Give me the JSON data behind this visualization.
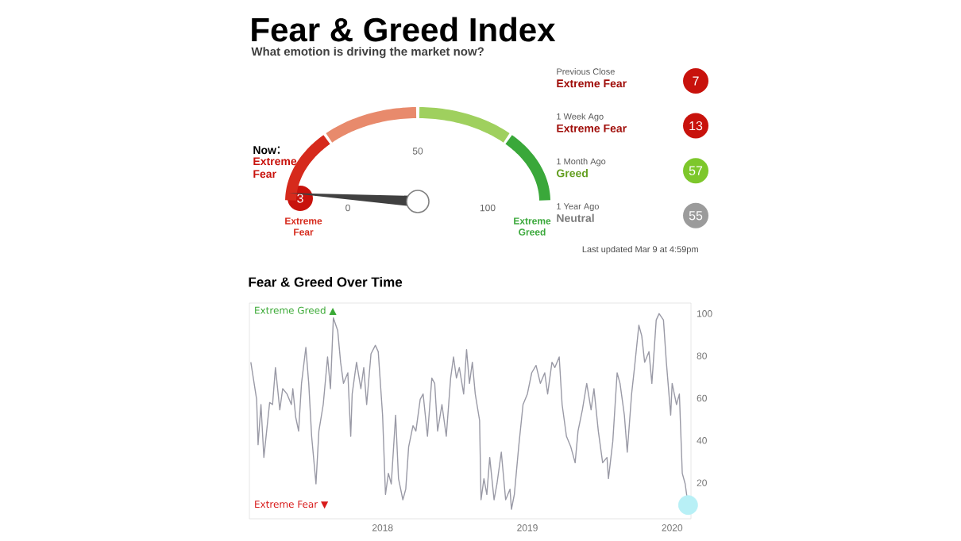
{
  "chart_data": [
    {
      "type": "other",
      "title": "Fear & Greed Index",
      "subtitle": "What emotion is driving the market now?",
      "categories": [
        "Now",
        "Previous Close",
        "1 Week Ago",
        "1 Month Ago",
        "1 Year Ago"
      ],
      "values": [
        3,
        7,
        13,
        57,
        55
      ],
      "colors": [
        "#c8120c",
        "#c8120c",
        "#c8120c",
        "#7dc72b",
        "#9b9b9b"
      ],
      "data_labels": true,
      "bands": [
        {
          "axis": "x",
          "label": "Extreme Fear",
          "color": "#d62a1c"
        },
        {
          "axis": "x",
          "label": null,
          "color": "#e88a6c"
        },
        {
          "axis": "x",
          "label": null,
          "color": "#9fd05e"
        },
        {
          "axis": "x",
          "label": "Extreme Greed",
          "color": "#3aa83a"
        }
      ],
      "annotations": [
        "Extreme Fear",
        "Extreme Fear",
        "Extreme Fear",
        "Greed",
        "Neutral",
        "0",
        "50",
        "100",
        "Last updated Mar 9 at 4:59pm"
      ]
    },
    {
      "type": "line",
      "title": "Fear & Greed Over Time",
      "xlim": [
        2017.08,
        2020.13
      ],
      "xticks": [
        2018,
        2019,
        2020
      ],
      "ylim": [
        3,
        105
      ],
      "yticks": [
        20,
        40,
        60,
        80,
        100
      ],
      "annotations": [
        "Extreme Greed ▲",
        "Extreme Fear ▼"
      ],
      "series": [
        {
          "type": "scatter",
          "color": "#b8f0f6",
          "x": [
            2020.11
          ],
          "values": [
            9.5
          ]
        },
        {
          "type": "line",
          "color": "#9a9aa6",
          "x": [
            2017.09,
            2017.13,
            2017.14,
            2017.16,
            2017.18,
            2017.22,
            2017.24,
            2017.26,
            2017.29,
            2017.31,
            2017.34,
            2017.37,
            2017.38,
            2017.4,
            2017.42,
            2017.44,
            2017.47,
            2017.49,
            2017.51,
            2017.54,
            2017.56,
            2017.59,
            2017.6,
            2017.62,
            2017.64,
            2017.66,
            2017.69,
            2017.71,
            2017.73,
            2017.76,
            2017.78,
            2017.79,
            2017.82,
            2017.85,
            2017.87,
            2017.89,
            2017.92,
            2017.95,
            2017.97,
            2018.0,
            2018.02,
            2018.04,
            2018.06,
            2018.09,
            2018.11,
            2018.14,
            2018.16,
            2018.18,
            2018.21,
            2018.23,
            2018.26,
            2018.28,
            2018.31,
            2018.34,
            2018.36,
            2018.38,
            2018.41,
            2018.44,
            2018.47,
            2018.49,
            2018.51,
            2018.53,
            2018.56,
            2018.58,
            2018.6,
            2018.62,
            2018.64,
            2018.67,
            2018.68,
            2018.7,
            2018.72,
            2018.74,
            2018.77,
            2018.79,
            2018.82,
            2018.85,
            2018.88,
            2018.89,
            2018.91,
            2018.94,
            2018.97,
            2019.0,
            2019.03,
            2019.06,
            2019.09,
            2019.12,
            2019.14,
            2019.17,
            2019.19,
            2019.22,
            2019.24,
            2019.27,
            2019.3,
            2019.33,
            2019.35,
            2019.38,
            2019.41,
            2019.44,
            2019.46,
            2019.49,
            2019.52,
            2019.55,
            2019.56,
            2019.59,
            2019.62,
            2019.64,
            2019.67,
            2019.69,
            2019.72,
            2019.74,
            2019.77,
            2019.79,
            2019.81,
            2019.84,
            2019.86,
            2019.89,
            2019.91,
            2019.94,
            2019.96,
            2019.99,
            2020.0,
            2020.03,
            2020.05,
            2020.07,
            2020.09,
            2020.11
          ],
          "values": [
            77,
            59.5,
            38,
            57,
            32,
            58,
            57,
            74.5,
            54.5,
            64.5,
            62,
            57,
            64.5,
            51,
            44.5,
            67,
            84,
            67,
            42,
            19.5,
            44.5,
            57,
            64.5,
            79.5,
            64.5,
            98,
            92,
            77,
            67,
            72,
            42,
            62,
            77,
            64.5,
            74.5,
            57,
            81,
            85,
            82,
            52,
            14.5,
            24.5,
            19.5,
            52,
            22,
            12,
            17,
            37,
            47,
            44.5,
            59.5,
            62,
            42,
            69.5,
            67,
            44.5,
            57,
            42,
            69.5,
            79.5,
            69.5,
            74.5,
            62,
            83,
            67,
            77,
            62,
            49.5,
            12,
            22,
            14.5,
            32,
            12,
            19.5,
            34.5,
            12,
            17,
            7.5,
            14.5,
            37,
            57,
            62,
            72,
            75.5,
            67,
            72,
            62,
            77,
            74.5,
            79.5,
            57,
            42,
            37,
            29.5,
            44.5,
            54.5,
            67,
            54.5,
            64.5,
            44.5,
            29.5,
            32,
            22,
            39.5,
            72,
            67,
            52,
            34.5,
            62,
            74.5,
            94.5,
            89.5,
            77,
            82,
            67,
            97,
            100,
            97,
            77,
            52,
            67,
            57,
            62,
            24.5,
            19.5,
            9.5
          ]
        }
      ]
    }
  ]
}
